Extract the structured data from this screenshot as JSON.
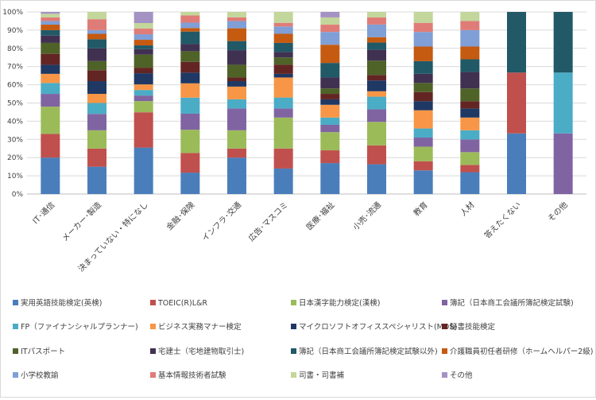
{
  "chart_data": {
    "type": "bar",
    "stacked": "percent",
    "title": "",
    "xlabel": "",
    "ylabel": "",
    "ylim": [
      0,
      100
    ],
    "y_ticks": [
      "0%",
      "10%",
      "20%",
      "30%",
      "40%",
      "50%",
      "60%",
      "70%",
      "80%",
      "90%",
      "100%"
    ],
    "grid": true,
    "legend_position": "bottom",
    "categories": [
      "IT･通信",
      "メーカー･製造",
      "決まっていない・特になし",
      "金融･保険",
      "インフラ･交通",
      "広告･マスコミ",
      "医療･福祉",
      "小売･流通",
      "教育",
      "人材",
      "答えたくない",
      "その他"
    ],
    "series": [
      {
        "name": "実用英語技能検定(英検)",
        "color": "#4a7ebb",
        "values": [
          20,
          15,
          25,
          12,
          20,
          14,
          17,
          16.5,
          13,
          12,
          33.3,
          0
        ]
      },
      {
        "name": "TOEIC(R)L&R",
        "color": "#c0504d",
        "values": [
          13,
          10,
          19,
          11,
          5,
          11,
          7,
          10.5,
          5,
          4,
          33.4,
          0
        ]
      },
      {
        "name": "日本漢字能力検定(漢検)",
        "color": "#9bbb59",
        "values": [
          15,
          10,
          6,
          13,
          10,
          17,
          10,
          13,
          8,
          7,
          0,
          0
        ]
      },
      {
        "name": "簿記（日本商工会議所簿記検定試験)",
        "color": "#8064a2",
        "values": [
          7,
          9,
          3,
          9,
          12,
          5,
          4,
          7,
          5,
          7,
          0,
          33.3
        ]
      },
      {
        "name": "FP（ファイナンシャルプランナー)",
        "color": "#4bacc6",
        "values": [
          6,
          6,
          3,
          9,
          5,
          6,
          4,
          7,
          5,
          5,
          0,
          33.4
        ]
      },
      {
        "name": "ビジネス実務マナー検定",
        "color": "#f79646",
        "values": [
          5,
          5,
          3,
          8,
          7,
          11,
          7,
          3,
          10,
          7,
          0,
          0
        ]
      },
      {
        "name": "マイクロソフトオフィススペシャリスト(MOS)",
        "color": "#1f3864",
        "values": [
          5,
          7,
          6,
          6,
          3,
          2,
          3,
          6,
          5,
          5,
          0,
          0
        ]
      },
      {
        "name": "秘書技能検定",
        "color": "#632523",
        "values": [
          6,
          6,
          3,
          6,
          2,
          5,
          3,
          3,
          5,
          4,
          0,
          0
        ]
      },
      {
        "name": "ITパスポート",
        "color": "#4f6228",
        "values": [
          6,
          5,
          7,
          6,
          7,
          4,
          3,
          8,
          5,
          7,
          0,
          0
        ]
      },
      {
        "name": "宅建士（宅地建物取引士)",
        "color": "#403151",
        "values": [
          4,
          7,
          3,
          4,
          8,
          3,
          6,
          6,
          5,
          9,
          0,
          0
        ]
      },
      {
        "name": "簿記（日本商工会議所簿記検定試験以外)",
        "color": "#215967",
        "values": [
          3,
          5,
          2,
          7,
          5,
          5,
          8,
          4,
          7,
          7,
          33.3,
          33.3
        ]
      },
      {
        "name": "介護職員初任者研修（ホームヘルパー2級)",
        "color": "#c55a11",
        "values": [
          3,
          3,
          3,
          2,
          7,
          5,
          10,
          3,
          8,
          7,
          0,
          0
        ]
      },
      {
        "name": "小学校教諭",
        "color": "#7f9fd6",
        "values": [
          2,
          2,
          3,
          3,
          4,
          4,
          7,
          7,
          8,
          9,
          0,
          0
        ]
      },
      {
        "name": "基本情報技術者試験",
        "color": "#e07c78",
        "values": [
          2,
          6,
          3,
          4,
          2,
          2,
          4,
          4,
          5,
          5,
          0,
          0
        ]
      },
      {
        "name": "司書・司書補",
        "color": "#c3d69b",
        "values": [
          2,
          4,
          3,
          2,
          3,
          6,
          4,
          3,
          6,
          5,
          0,
          0
        ]
      },
      {
        "name": "その他",
        "color": "#a492c4",
        "values": [
          1,
          0,
          6,
          0,
          0,
          0,
          3,
          0,
          0,
          0,
          0,
          0
        ]
      }
    ]
  }
}
